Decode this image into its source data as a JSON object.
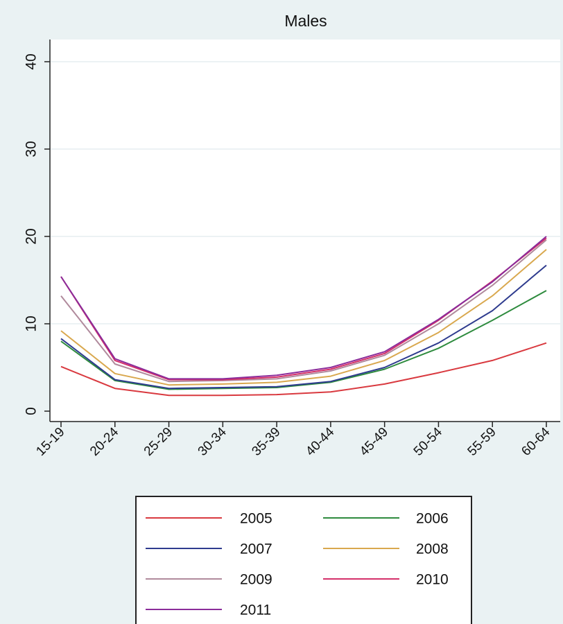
{
  "chart_data": {
    "type": "line",
    "title": "Males",
    "xlabel": "",
    "ylabel": "",
    "ylim": [
      0,
      40
    ],
    "y_ticks": [
      0,
      10,
      20,
      30,
      40
    ],
    "grid": true,
    "legend_position": "bottom",
    "categories": [
      "15-19",
      "20-24",
      "25-29",
      "30-34",
      "35-39",
      "40-44",
      "45-49",
      "50-54",
      "55-59",
      "60-64"
    ],
    "series": [
      {
        "name": "2005",
        "color": "#d9393f",
        "values": [
          5.1,
          2.6,
          1.8,
          1.8,
          1.9,
          2.2,
          3.1,
          4.4,
          5.8,
          7.8
        ]
      },
      {
        "name": "2006",
        "color": "#2e8b3e",
        "values": [
          8.0,
          3.5,
          2.5,
          2.6,
          2.7,
          3.3,
          4.8,
          7.2,
          10.4,
          13.8
        ]
      },
      {
        "name": "2007",
        "color": "#2e3b8e",
        "values": [
          8.3,
          3.6,
          2.6,
          2.7,
          2.8,
          3.4,
          5.0,
          7.8,
          11.5,
          16.7
        ]
      },
      {
        "name": "2008",
        "color": "#d9a84e",
        "values": [
          9.2,
          4.3,
          3.0,
          3.1,
          3.3,
          4.0,
          5.8,
          9.0,
          13.2,
          18.5
        ]
      },
      {
        "name": "2009",
        "color": "#b08a9c",
        "values": [
          13.2,
          5.4,
          3.4,
          3.5,
          3.7,
          4.6,
          6.4,
          10.0,
          14.4,
          19.6
        ]
      },
      {
        "name": "2010",
        "color": "#d4306a",
        "values": [
          15.4,
          5.8,
          3.6,
          3.6,
          3.9,
          4.8,
          6.6,
          10.4,
          14.9,
          19.8
        ]
      },
      {
        "name": "2011",
        "color": "#8b2c9a",
        "values": [
          15.4,
          6.0,
          3.7,
          3.7,
          4.1,
          5.0,
          6.8,
          10.5,
          14.8,
          20.0
        ]
      }
    ]
  }
}
